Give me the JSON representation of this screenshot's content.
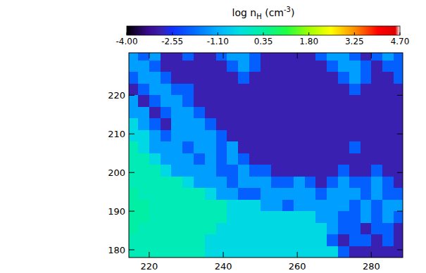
{
  "chart_data": {
    "type": "heatmap",
    "xlim": [
      214.5,
      288.5
    ],
    "ylim": [
      178,
      231
    ],
    "xticks": [
      220,
      240,
      260,
      280
    ],
    "yticks": [
      180,
      190,
      200,
      210,
      220
    ],
    "x_edges": [
      214,
      217,
      220,
      223,
      226,
      229,
      232,
      235,
      238,
      241,
      244,
      247,
      250,
      253,
      256,
      259,
      262,
      265,
      268,
      271,
      274,
      277,
      280,
      283,
      286,
      289
    ],
    "y_edges": [
      231,
      229,
      226,
      223,
      220,
      217,
      214,
      211,
      208,
      205,
      202,
      199,
      196,
      193,
      190,
      187,
      184,
      181,
      178
    ],
    "cells": [
      [
        -1.3,
        -2.0,
        -1.3,
        -2.9,
        -2.9,
        -2.0,
        -2.9,
        -2.9,
        -2.0,
        -1.3,
        -1.3,
        -2.0,
        -2.9,
        -2.9,
        -2.9,
        -2.9,
        -2.9,
        -2.0,
        -1.3,
        -1.3,
        -2.0,
        -2.9,
        -2.0,
        -1.3,
        -2.0
      ],
      [
        -1.3,
        -1.3,
        -2.0,
        -2.9,
        -2.9,
        -2.9,
        -2.9,
        -2.9,
        -2.9,
        -2.0,
        -1.3,
        -2.0,
        -2.9,
        -2.9,
        -2.9,
        -2.9,
        -2.9,
        -2.9,
        -2.0,
        -1.3,
        -1.3,
        -2.0,
        -2.9,
        -2.0,
        -2.0
      ],
      [
        -2.0,
        -1.3,
        -1.3,
        -2.0,
        -2.9,
        -2.9,
        -2.9,
        -2.9,
        -2.9,
        -2.9,
        -2.0,
        -2.9,
        -2.9,
        -2.9,
        -2.9,
        -2.9,
        -2.9,
        -2.9,
        -2.9,
        -2.0,
        -1.3,
        -2.0,
        -2.9,
        -2.9,
        -2.0
      ],
      [
        -2.9,
        -2.0,
        -1.3,
        -1.3,
        -2.0,
        -2.0,
        -2.9,
        -2.9,
        -2.9,
        -2.9,
        -2.9,
        -2.9,
        -2.9,
        -2.9,
        -2.9,
        -2.9,
        -2.9,
        -2.9,
        -2.9,
        -2.9,
        -2.0,
        -2.9,
        -2.9,
        -2.9,
        -2.9
      ],
      [
        -1.3,
        -2.9,
        -2.0,
        -1.3,
        -1.3,
        -2.0,
        -2.9,
        -2.9,
        -2.9,
        -2.9,
        -2.9,
        -2.9,
        -2.9,
        -2.9,
        -2.9,
        -2.9,
        -2.9,
        -2.9,
        -2.9,
        -2.9,
        -2.9,
        -2.9,
        -2.9,
        -2.9,
        -2.9
      ],
      [
        -1.3,
        -1.3,
        -2.9,
        -2.0,
        -1.3,
        -1.3,
        -2.0,
        -2.9,
        -2.9,
        -2.9,
        -2.9,
        -2.9,
        -2.9,
        -2.9,
        -2.9,
        -2.9,
        -2.9,
        -2.9,
        -2.9,
        -2.9,
        -2.9,
        -2.9,
        -2.9,
        -2.9,
        -2.9
      ],
      [
        -0.5,
        -1.3,
        -2.0,
        -2.9,
        -1.3,
        -1.3,
        -1.3,
        -2.0,
        -2.9,
        -2.9,
        -2.9,
        -2.9,
        -2.9,
        -2.9,
        -2.9,
        -2.9,
        -2.9,
        -2.9,
        -2.9,
        -2.9,
        -2.9,
        -2.9,
        -2.9,
        -2.9,
        -2.9
      ],
      [
        -0.5,
        -0.5,
        -1.3,
        -2.0,
        -1.3,
        -1.3,
        -1.3,
        -1.3,
        -2.0,
        -2.9,
        -2.9,
        -2.9,
        -2.9,
        -2.9,
        -2.9,
        -2.9,
        -2.9,
        -2.9,
        -2.9,
        -2.9,
        -2.9,
        -2.9,
        -2.9,
        -2.9,
        -2.9
      ],
      [
        0.1,
        -0.5,
        -1.3,
        -1.3,
        -1.3,
        -2.0,
        -1.3,
        -1.3,
        -2.0,
        -1.3,
        -2.9,
        -2.9,
        -2.9,
        -2.9,
        -2.9,
        -2.9,
        -2.9,
        -2.9,
        -2.9,
        -2.9,
        -2.0,
        -2.9,
        -2.9,
        -2.9,
        -2.9
      ],
      [
        0.1,
        0.1,
        -0.5,
        -1.3,
        -1.3,
        -1.3,
        -2.0,
        -1.3,
        -2.0,
        -1.3,
        -2.0,
        -2.9,
        -2.9,
        -2.9,
        -2.9,
        -2.9,
        -2.9,
        -2.9,
        -2.9,
        -2.9,
        -2.9,
        -2.9,
        -2.9,
        -2.9,
        -2.9
      ],
      [
        0.1,
        0.1,
        0.1,
        -0.5,
        -1.3,
        -1.3,
        -1.3,
        -1.3,
        -2.0,
        -2.0,
        -1.3,
        -2.0,
        -2.0,
        -2.9,
        -2.9,
        -2.9,
        -2.9,
        -2.9,
        -2.9,
        -2.0,
        -2.9,
        -2.9,
        -2.0,
        -2.9,
        -2.9
      ],
      [
        0.1,
        0.1,
        0.1,
        0.1,
        0.1,
        -0.5,
        -1.3,
        -1.3,
        -1.3,
        -2.0,
        -1.3,
        -1.3,
        -1.3,
        -2.0,
        -2.0,
        -1.3,
        -2.0,
        -2.9,
        -2.0,
        -1.3,
        -2.0,
        -2.0,
        -1.3,
        -2.0,
        -2.9
      ],
      [
        0.3,
        0.1,
        0.1,
        0.1,
        0.1,
        0.1,
        0.1,
        -0.5,
        -1.3,
        -1.3,
        -2.0,
        -2.0,
        -1.3,
        -1.3,
        -1.3,
        -1.3,
        -1.3,
        -2.0,
        -1.3,
        -1.3,
        -1.3,
        -2.0,
        -1.3,
        -2.0,
        -2.0
      ],
      [
        0.3,
        0.3,
        0.1,
        0.1,
        0.1,
        0.1,
        0.1,
        0.1,
        0.1,
        -0.5,
        -0.5,
        -0.5,
        -1.3,
        -1.3,
        -2.0,
        -1.3,
        -1.3,
        -1.3,
        -1.3,
        -1.3,
        -2.0,
        -1.3,
        -2.0,
        -1.3,
        -1.3
      ],
      [
        0.3,
        0.3,
        0.1,
        0.1,
        0.1,
        0.1,
        0.1,
        0.1,
        0.1,
        -0.5,
        -0.5,
        -0.5,
        -0.5,
        -0.5,
        -0.5,
        -0.5,
        -0.5,
        -1.3,
        -1.3,
        -2.0,
        -2.0,
        -1.3,
        -2.0,
        -1.3,
        -2.0
      ],
      [
        0.3,
        0.1,
        0.1,
        0.1,
        0.1,
        0.1,
        0.1,
        0.1,
        -0.5,
        -0.5,
        -0.5,
        -0.5,
        -0.5,
        -0.5,
        -0.5,
        -0.5,
        -0.5,
        -0.5,
        -1.3,
        -2.0,
        -2.0,
        -2.9,
        -2.0,
        -2.0,
        -2.9
      ],
      [
        0.1,
        0.1,
        0.1,
        0.1,
        0.1,
        0.1,
        0.1,
        -0.5,
        -0.5,
        -0.5,
        -0.5,
        -0.5,
        -0.5,
        -0.5,
        -0.5,
        -0.5,
        -0.5,
        -0.5,
        -2.0,
        -2.9,
        -2.0,
        -2.0,
        -2.9,
        -2.0,
        -2.9
      ],
      [
        0.1,
        0.1,
        0.1,
        0.1,
        0.1,
        0.1,
        0.1,
        -0.5,
        -0.5,
        -0.5,
        -0.5,
        -0.5,
        -0.5,
        -0.5,
        -0.5,
        -0.5,
        -0.5,
        -0.5,
        -0.5,
        -2.0,
        -2.9,
        -2.9,
        -2.9,
        -2.9,
        -2.9
      ]
    ],
    "colorbar": {
      "label": {
        "base": "log n",
        "sub": "H",
        "unit": " (cm",
        "sup": "-3",
        "close": ")"
      },
      "range": [
        -4,
        4.7
      ],
      "ticks": [
        {
          "value": -4,
          "label": "-4.00"
        },
        {
          "value": -2.55,
          "label": "-2.55"
        },
        {
          "value": -1.1,
          "label": "-1.10"
        },
        {
          "value": 0.35,
          "label": "0.35"
        },
        {
          "value": 1.8,
          "label": "1.80"
        },
        {
          "value": 3.25,
          "label": "3.25"
        },
        {
          "value": 4.7,
          "label": "4.70"
        }
      ]
    }
  }
}
